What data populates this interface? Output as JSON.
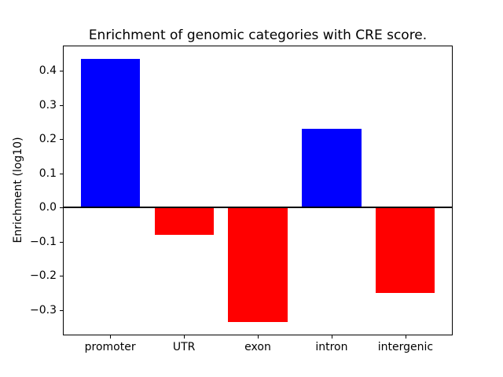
{
  "figure": {
    "title": "Enrichment of genomic categories with CRE score.",
    "ylabel": "Enrichment (log10)"
  },
  "chart_data": {
    "type": "bar",
    "title": "Enrichment of genomic categories with CRE score.",
    "xlabel": "",
    "ylabel": "Enrichment (log10)",
    "categories": [
      "promoter",
      "UTR",
      "exon",
      "intron",
      "intergenic"
    ],
    "values": [
      0.435,
      -0.08,
      -0.335,
      0.23,
      -0.25
    ],
    "bar_colors": [
      "#0000ff",
      "#ff0000",
      "#ff0000",
      "#0000ff",
      "#ff0000"
    ],
    "positive_color": "#0000ff",
    "negative_color": "#ff0000",
    "yticks": [
      0.4,
      0.3,
      0.2,
      0.1,
      0.0,
      -0.1,
      -0.2,
      -0.3
    ],
    "ytick_labels": [
      "0.4",
      "0.3",
      "0.2",
      "0.1",
      "0.0",
      "−0.1",
      "−0.2",
      "−0.3"
    ],
    "ylim": [
      -0.3735,
      0.4735
    ],
    "xlim": [
      -0.64,
      4.64
    ],
    "bar_width": 0.8,
    "zero_line": true,
    "grid": false,
    "legend": false,
    "frame_color": "#000000",
    "text_color": "#000000",
    "background": "#ffffff"
  }
}
